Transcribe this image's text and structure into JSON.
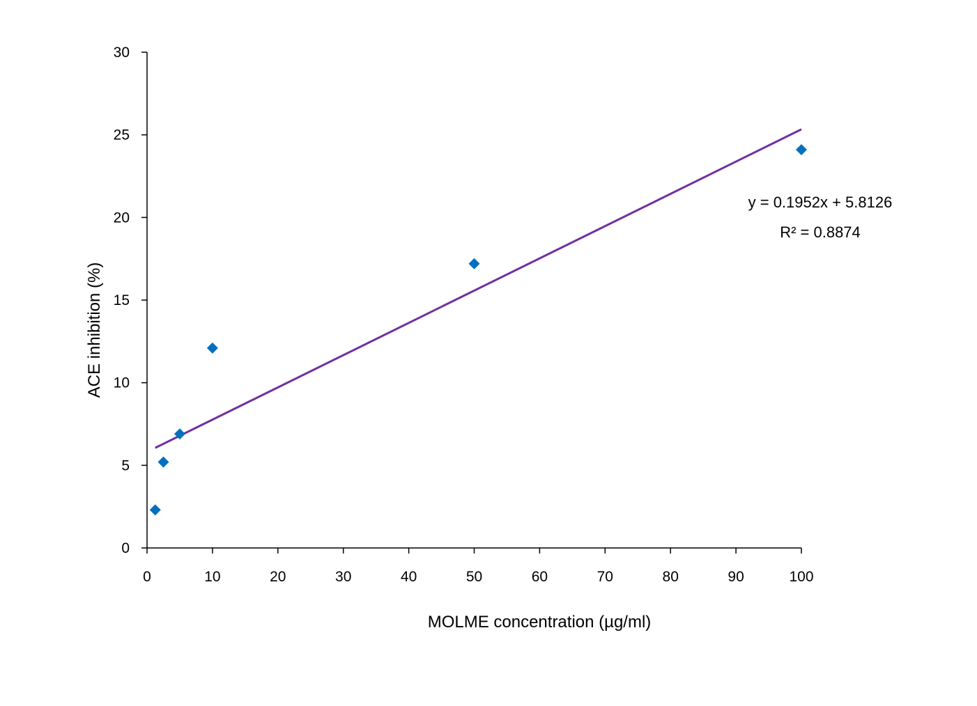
{
  "chart_data": {
    "type": "scatter",
    "title": "",
    "xlabel": "MOLME concentration (µg/ml)",
    "ylabel": "ACE inhibition (%)",
    "xlim": [
      0,
      100
    ],
    "ylim": [
      0,
      30
    ],
    "xticks": [
      "0",
      "10",
      "20",
      "30",
      "40",
      "50",
      "60",
      "70",
      "80",
      "90",
      "100"
    ],
    "yticks": [
      "0",
      "5",
      "10",
      "15",
      "20",
      "25",
      "30"
    ],
    "grid": false,
    "legend": "none",
    "series": [
      {
        "x": [
          1.25,
          2.5,
          5,
          10,
          50,
          100
        ],
        "y": [
          2.3,
          5.2,
          6.9,
          12.1,
          17.2,
          24.1
        ],
        "color": "#0070C0",
        "marker": "diamond"
      }
    ],
    "trendline": {
      "type": "linear",
      "slope": 0.1952,
      "intercept": 5.8126,
      "x_range": [
        1.25,
        100
      ],
      "color": "#7030A0"
    },
    "annotations": {
      "equation": "y = 0.1952x + 5.8126",
      "r_squared": "R² = 0.8874"
    }
  }
}
